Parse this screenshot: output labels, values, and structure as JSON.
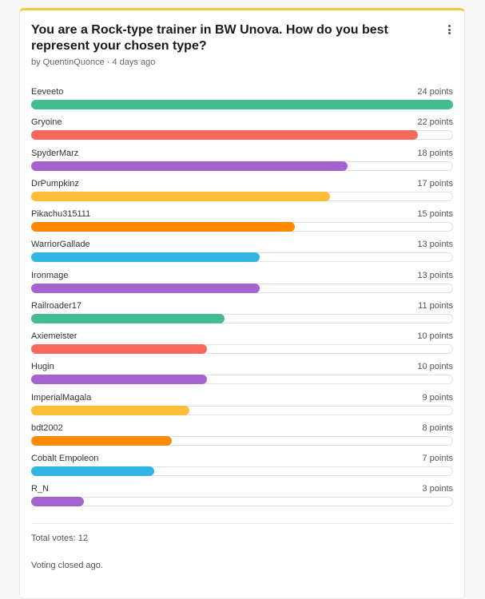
{
  "poll": {
    "title": "You are a Rock-type trainer in BW Unova. How do you best represent your chosen type?",
    "author": "by QuentinQuonce",
    "age": "· 4 days ago",
    "max_points": 24,
    "options": [
      {
        "name": "Eeveeto",
        "points_label": "24 points",
        "points": 24,
        "color": "#42bd8f"
      },
      {
        "name": "Gryoine",
        "points_label": "22 points",
        "points": 22,
        "color": "#f7685f"
      },
      {
        "name": "SpyderMarz",
        "points_label": "18 points",
        "points": 18,
        "color": "#a463cf"
      },
      {
        "name": "DrPumpkinz",
        "points_label": "17 points",
        "points": 17,
        "color": "#fdbf38"
      },
      {
        "name": "Pikachu315111",
        "points_label": "15 points",
        "points": 15,
        "color": "#ff8a00"
      },
      {
        "name": "WarriorGallade",
        "points_label": "13 points",
        "points": 13,
        "color": "#33b5e3"
      },
      {
        "name": "Ironmage",
        "points_label": "13 points",
        "points": 13,
        "color": "#a463cf"
      },
      {
        "name": "Railroader17",
        "points_label": "11 points",
        "points": 11,
        "color": "#42bd8f"
      },
      {
        "name": "Axiemeister",
        "points_label": "10 points",
        "points": 10,
        "color": "#f7685f"
      },
      {
        "name": "Hugin",
        "points_label": "10 points",
        "points": 10,
        "color": "#a463cf"
      },
      {
        "name": "ImperialMagala",
        "points_label": "9 points",
        "points": 9,
        "color": "#fdbf38"
      },
      {
        "name": "bdt2002",
        "points_label": "8 points",
        "points": 8,
        "color": "#ff8a00"
      },
      {
        "name": "Cobalt Empoleon",
        "points_label": "7 points",
        "points": 7,
        "color": "#33b5e3"
      },
      {
        "name": "R_N",
        "points_label": "3 points",
        "points": 3,
        "color": "#a463cf"
      }
    ],
    "total_votes": "Total votes: 12",
    "status": "Voting closed ago."
  },
  "menu_icon": "more-vertical-icon",
  "accent": "#f7c338"
}
